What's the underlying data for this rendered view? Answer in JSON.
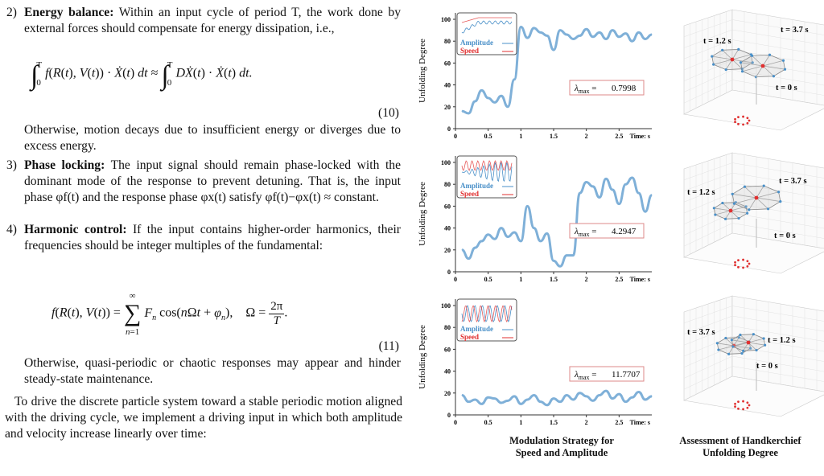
{
  "items": [
    {
      "num": "2)",
      "title": "Energy balance:",
      "text": "Within an input cycle of period T, the work done by external forces should compensate for energy dissipation, i.e.,"
    },
    {
      "num": "3)",
      "title": "Phase locking:",
      "text": "The input signal should remain phase-locked with the dominant mode of the response to prevent detuning. That is, the input phase φf(t) and the response phase φx(t) satisfy φf(t)−φx(t) ≈ constant."
    },
    {
      "num": "4)",
      "title": "Harmonic control:",
      "text": "If the input contains higher-order harmonics, their frequencies should be integer multiples of the fundamental:"
    }
  ],
  "eq10": {
    "tag": "(10)"
  },
  "eq11": {
    "tag": "(11)"
  },
  "after10": "Otherwise, motion decays due to insufficient energy or diverges due to excess energy.",
  "after11": "Otherwise, quasi-periodic or chaotic responses may appear and hinder steady-state maintenance.",
  "final_para": "To drive the discrete particle system toward a stable periodic motion aligned with the driving cycle, we implement a driving input in which both amplitude and velocity increase linearly over time:",
  "figure": {
    "ylabel": "Unfolding Degree",
    "xlabel": "Time: s",
    "legend": {
      "amplitude": "Amplitude",
      "speed": "Speed"
    },
    "colors": {
      "amplitude": "#4a90c8",
      "speed": "#e03030",
      "line": "#7fb0d8"
    },
    "captions": {
      "left": [
        "Modulation Strategy for",
        "Speed and Amplitude"
      ],
      "right": [
        "Assessment of Handkerchief",
        "Unfolding Degree"
      ]
    },
    "panels": [
      {
        "lambda": "0.7998",
        "times": {
          "a": "t = 1.2 s",
          "b": "t = 3.7 s",
          "c": "t = 0 s"
        }
      },
      {
        "lambda": "4.2947",
        "times": {
          "a": "t = 1.2 s",
          "b": "t = 3.7 s",
          "c": "t = 0 s"
        }
      },
      {
        "lambda": "11.7707",
        "times": {
          "a": "t = 3.7 s",
          "b": "t = 1.2 s",
          "c": "t = 0 s"
        }
      }
    ]
  },
  "chart_data": [
    {
      "type": "line",
      "xlim": [
        0,
        3
      ],
      "ylim": [
        0,
        100
      ],
      "xticks": [
        "0",
        "0.5",
        "1",
        "1.5",
        "2",
        "2.5"
      ],
      "yticks": [
        "0",
        "20",
        "40",
        "60",
        "80",
        "100"
      ],
      "x": [
        0.1,
        0.2,
        0.3,
        0.4,
        0.5,
        0.6,
        0.7,
        0.8,
        0.9,
        1.0,
        1.1,
        1.2,
        1.3,
        1.4,
        1.5,
        1.6,
        1.7,
        1.8,
        1.9,
        2.0,
        2.1,
        2.2,
        2.3,
        2.4,
        2.5,
        2.6,
        2.7,
        2.8,
        2.9,
        3.0
      ],
      "values": [
        16,
        14,
        25,
        35,
        28,
        24,
        30,
        20,
        45,
        93,
        83,
        92,
        88,
        85,
        72,
        90,
        86,
        82,
        85,
        91,
        84,
        88,
        82,
        90,
        84,
        87,
        80,
        88,
        82,
        86
      ]
    },
    {
      "type": "line",
      "xlim": [
        0,
        3
      ],
      "ylim": [
        0,
        100
      ],
      "xticks": [
        "0",
        "0.5",
        "1",
        "1.5",
        "2",
        "2.5"
      ],
      "yticks": [
        "0",
        "20",
        "40",
        "60",
        "80",
        "100"
      ],
      "x": [
        0.1,
        0.2,
        0.3,
        0.4,
        0.5,
        0.6,
        0.7,
        0.8,
        0.9,
        1.0,
        1.1,
        1.2,
        1.3,
        1.4,
        1.5,
        1.6,
        1.7,
        1.8,
        1.9,
        2.0,
        2.1,
        2.2,
        2.3,
        2.4,
        2.5,
        2.6,
        2.7,
        2.8,
        2.9,
        3.0
      ],
      "values": [
        20,
        12,
        22,
        28,
        34,
        30,
        40,
        32,
        36,
        28,
        60,
        40,
        28,
        35,
        10,
        5,
        15,
        15,
        72,
        82,
        78,
        68,
        85,
        75,
        62,
        80,
        86,
        72,
        55,
        70
      ]
    },
    {
      "type": "line",
      "xlim": [
        0,
        3
      ],
      "ylim": [
        0,
        100
      ],
      "xticks": [
        "0",
        "0.5",
        "1",
        "1.5",
        "2",
        "2.5"
      ],
      "yticks": [
        "0",
        "20",
        "40",
        "60",
        "80",
        "100"
      ],
      "x": [
        0.1,
        0.2,
        0.3,
        0.4,
        0.5,
        0.6,
        0.7,
        0.8,
        0.9,
        1.0,
        1.1,
        1.2,
        1.3,
        1.4,
        1.5,
        1.6,
        1.7,
        1.8,
        1.9,
        2.0,
        2.1,
        2.2,
        2.3,
        2.4,
        2.5,
        2.6,
        2.7,
        2.8,
        2.9,
        3.0
      ],
      "values": [
        18,
        12,
        14,
        10,
        16,
        15,
        11,
        13,
        17,
        10,
        14,
        18,
        12,
        9,
        15,
        12,
        18,
        14,
        20,
        17,
        13,
        18,
        22,
        15,
        19,
        12,
        16,
        21,
        14,
        17
      ]
    }
  ]
}
